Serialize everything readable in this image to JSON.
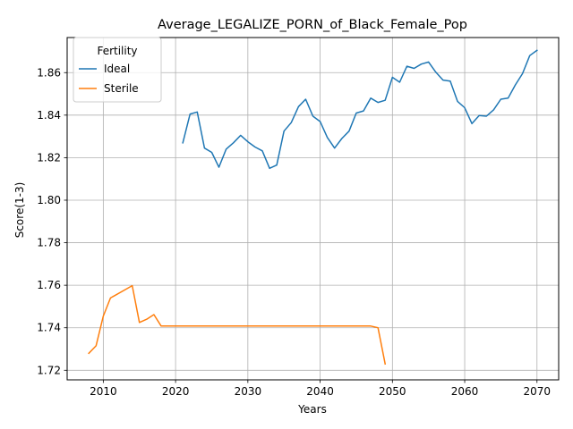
{
  "chart_data": {
    "type": "line",
    "title": "Average_LEGALIZE_PORN_of_Black_Female_Pop",
    "xlabel": "Years",
    "ylabel": "Score(1-3)",
    "xlim": [
      2005,
      2073
    ],
    "ylim": [
      1.7155,
      1.8765
    ],
    "xticks": [
      2010,
      2020,
      2030,
      2040,
      2050,
      2060,
      2070
    ],
    "yticks": [
      1.72,
      1.74,
      1.76,
      1.78,
      1.8,
      1.82,
      1.84,
      1.86
    ],
    "ytick_labels": [
      "1.72",
      "1.74",
      "1.76",
      "1.78",
      "1.80",
      "1.82",
      "1.84",
      "1.86"
    ],
    "grid": true,
    "legend": {
      "title": "Fertility",
      "placement": "top-left"
    },
    "series": [
      {
        "name": "Ideal",
        "color": "#1f77b4",
        "x": [
          2021,
          2022,
          2023,
          2024,
          2025,
          2026,
          2027,
          2028,
          2029,
          2030,
          2031,
          2032,
          2033,
          2034,
          2035,
          2036,
          2037,
          2038,
          2039,
          2040,
          2041,
          2042,
          2043,
          2044,
          2045,
          2046,
          2047,
          2048,
          2049,
          2050,
          2051,
          2052,
          2053,
          2054,
          2055,
          2056,
          2057,
          2058,
          2059,
          2060,
          2061,
          2062,
          2063,
          2064,
          2065,
          2066,
          2067,
          2068,
          2069,
          2070
        ],
        "y": [
          1.827,
          1.8405,
          1.8415,
          1.8245,
          1.8225,
          1.8155,
          1.824,
          1.827,
          1.8305,
          1.8275,
          1.825,
          1.8232,
          1.815,
          1.8165,
          1.8325,
          1.8365,
          1.844,
          1.8475,
          1.8395,
          1.837,
          1.8295,
          1.8245,
          1.829,
          1.8325,
          1.841,
          1.842,
          1.848,
          1.846,
          1.847,
          1.8578,
          1.8555,
          1.863,
          1.862,
          1.864,
          1.865,
          1.8602,
          1.8565,
          1.856,
          1.8465,
          1.8435,
          1.836,
          1.8398,
          1.8395,
          1.8425,
          1.8475,
          1.848,
          1.8542,
          1.8595,
          1.868,
          1.8705
        ]
      },
      {
        "name": "Sterile",
        "color": "#ff7f0e",
        "x": [
          2008,
          2009,
          2010,
          2011,
          2014,
          2015,
          2016,
          2017,
          2018,
          2019,
          2020,
          2025,
          2030,
          2035,
          2040,
          2045,
          2047,
          2048,
          2049
        ],
        "y": [
          1.728,
          1.7315,
          1.7455,
          1.754,
          1.7598,
          1.7425,
          1.744,
          1.7462,
          1.7408,
          1.7408,
          1.7408,
          1.7408,
          1.7408,
          1.7408,
          1.7408,
          1.7408,
          1.7408,
          1.74,
          1.723
        ]
      }
    ]
  }
}
